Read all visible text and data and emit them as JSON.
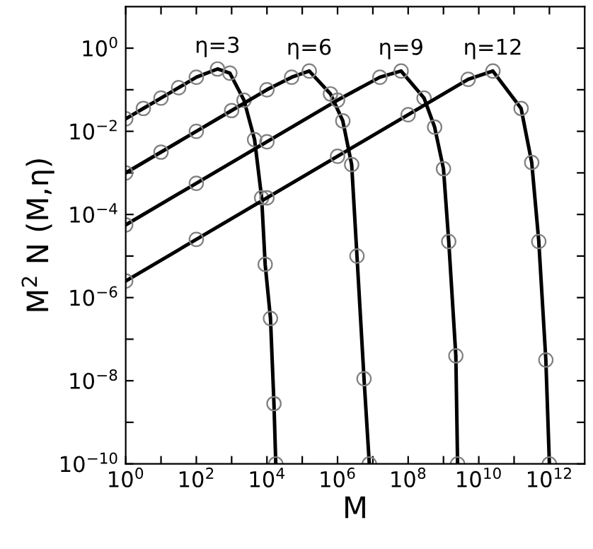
{
  "chart_data": {
    "type": "line",
    "xlabel": "M",
    "ylabel": "M$^{2}$ N (M,η)",
    "log": "xy",
    "marker": "circle",
    "line_style": "solid",
    "grid": false,
    "legend": "top",
    "xlim": [
      1,
      10000000000000.0
    ],
    "ylim": [
      1e-10,
      10
    ],
    "xticks": [
      {
        "value": 1,
        "label": "10$^{0}$"
      },
      {
        "value": 10,
        "label": null
      },
      {
        "value": 100,
        "label": "10$^{2}$"
      },
      {
        "value": 1000,
        "label": null
      },
      {
        "value": 10000.0,
        "label": "10$^{4}$"
      },
      {
        "value": 100000.0,
        "label": null
      },
      {
        "value": 1000000.0,
        "label": "10$^{6}$"
      },
      {
        "value": 10000000.0,
        "label": null
      },
      {
        "value": 100000000.0,
        "label": "10$^{8}$"
      },
      {
        "value": 1000000000.0,
        "label": null
      },
      {
        "value": 10000000000.0,
        "label": "10$^{10}$"
      },
      {
        "value": 100000000000.0,
        "label": null
      },
      {
        "value": 1000000000000.0,
        "label": "10$^{12}$"
      }
    ],
    "yticks": [
      {
        "value": 1e-10,
        "label": "10$^{−10}$"
      },
      {
        "value": 1e-09,
        "label": null
      },
      {
        "value": 1e-08,
        "label": "10$^{−8}$"
      },
      {
        "value": 1e-07,
        "label": null
      },
      {
        "value": 1e-06,
        "label": "10$^{−6}$"
      },
      {
        "value": 1e-05,
        "label": null
      },
      {
        "value": 0.0001,
        "label": "10$^{−4}$"
      },
      {
        "value": 0.001,
        "label": null
      },
      {
        "value": 0.01,
        "label": "10$^{−2}$"
      },
      {
        "value": 0.1,
        "label": null
      },
      {
        "value": 1,
        "label": "10$^{0}$"
      }
    ],
    "series": [
      {
        "name": "η=3",
        "color": "#000000",
        "x": [
          1,
          3.16,
          10,
          31.6,
          100,
          398,
          891,
          2240,
          4470,
          7080,
          8910,
          12600,
          15800,
          17800
        ],
        "values": [
          0.02,
          0.0355,
          0.0631,
          0.112,
          0.2,
          0.316,
          0.251,
          0.0562,
          0.00631,
          0.000251,
          6.31e-06,
          3.16e-07,
          2.82e-09,
          1e-10
        ]
      },
      {
        "name": "η=6",
        "color": "#000000",
        "x": [
          1,
          10,
          100,
          1000,
          10000.0,
          50100.0,
          158000.0,
          631000.0,
          1410000.0,
          2510000.0,
          3550000.0,
          5620000.0,
          7940000.0
        ],
        "values": [
          0.001,
          0.00316,
          0.01,
          0.0316,
          0.1,
          0.2,
          0.282,
          0.0794,
          0.0178,
          0.00158,
          1e-05,
          1.12e-08,
          1e-10
        ]
      },
      {
        "name": "η=9",
        "color": "#000000",
        "x": [
          1,
          100,
          10000.0,
          1000000.0,
          15800000.0,
          63100000.0,
          282000000.0,
          562000000.0,
          1000000000.0,
          1410000000.0,
          2240000000.0,
          2510000000.0
        ],
        "values": [
          5.62e-05,
          0.000562,
          0.00562,
          0.0562,
          0.2,
          0.282,
          0.0631,
          0.0126,
          0.00126,
          2.24e-05,
          3.98e-08,
          1e-10
        ]
      },
      {
        "name": "η=12",
        "color": "#000000",
        "x": [
          1,
          100,
          10000.0,
          1000000.0,
          100000000.0,
          5010000000.0,
          25100000000.0,
          158000000000.0,
          316000000000.0,
          501000000000.0,
          794000000000.0,
          1000000000000.0
        ],
        "values": [
          2.51e-06,
          2.51e-05,
          0.000251,
          0.00251,
          0.0251,
          0.178,
          0.282,
          0.0355,
          0.00178,
          2.24e-05,
          3.16e-08,
          1e-10
        ]
      }
    ]
  }
}
